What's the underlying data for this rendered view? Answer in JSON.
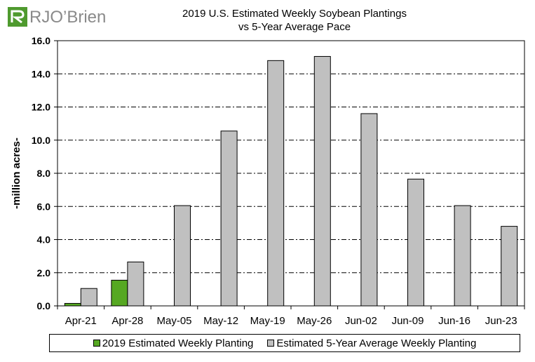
{
  "logo": {
    "text": "RJO’Brien",
    "brand_colors": [
      "#4f9a2e",
      "#8a8a8a"
    ]
  },
  "chart_data": {
    "type": "bar",
    "title": "2019 U.S. Estimated Weekly Soybean Plantings",
    "subtitle": "vs 5-Year Average Pace",
    "xlabel": "",
    "ylabel": "-million acres-",
    "ylim": [
      0,
      16
    ],
    "yticks": [
      "0.0",
      "2.0",
      "4.0",
      "6.0",
      "8.0",
      "10.0",
      "12.0",
      "14.0",
      "16.0"
    ],
    "grid": "horizontal dash-dot",
    "legend_position": "bottom",
    "categories": [
      "Apr-21",
      "Apr-28",
      "May-05",
      "May-12",
      "May-19",
      "May-26",
      "Jun-02",
      "Jun-09",
      "Jun-16",
      "Jun-23"
    ],
    "series": [
      {
        "name": "2019 Estimated Weekly Planting",
        "color": "#56a822",
        "values": [
          0.15,
          1.55,
          null,
          null,
          null,
          null,
          null,
          null,
          null,
          null
        ]
      },
      {
        "name": "Estimated 5-Year Average Weekly Planting",
        "color": "#c0c0c0",
        "values": [
          1.05,
          2.65,
          6.05,
          10.55,
          14.8,
          15.05,
          11.6,
          7.65,
          6.05,
          4.8
        ]
      }
    ]
  }
}
